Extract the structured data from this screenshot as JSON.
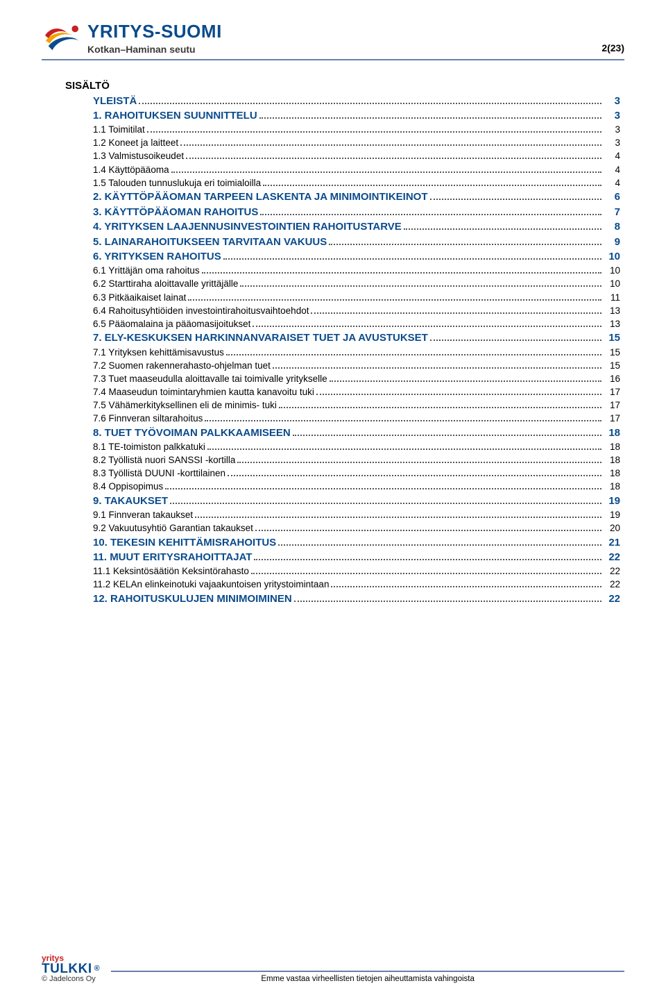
{
  "header": {
    "brand_title": "YRITYS-SUOMI",
    "brand_subtitle": "Kotkan–Haminan seutu",
    "page_indicator": "2(23)"
  },
  "sisalto_label": "SISÄLTÖ",
  "toc": [
    {
      "title": "YLEISTÄ",
      "page": "3",
      "bold": true
    },
    {
      "title": "1. RAHOITUKSEN SUUNNITTELU",
      "page": "3",
      "bold": true
    },
    {
      "title": "1.1 Toimitilat",
      "page": "3",
      "bold": false
    },
    {
      "title": "1.2 Koneet ja laitteet",
      "page": "3",
      "bold": false
    },
    {
      "title": "1.3 Valmistusoikeudet",
      "page": "4",
      "bold": false
    },
    {
      "title": "1.4 Käyttöpääoma",
      "page": "4",
      "bold": false
    },
    {
      "title": "1.5 Talouden tunnuslukuja eri toimialoilla",
      "page": "4",
      "bold": false
    },
    {
      "title": "2. KÄYTTÖPÄÄOMAN TARPEEN LASKENTA JA MINIMOINTIKEINOT",
      "page": "6",
      "bold": true
    },
    {
      "title": "3. KÄYTTÖPÄÄOMAN RAHOITUS",
      "page": "7",
      "bold": true
    },
    {
      "title": "4. YRITYKSEN LAAJENNUSINVESTOINTIEN RAHOITUSTARVE",
      "page": "8",
      "bold": true
    },
    {
      "title": "5. LAINARAHOITUKSEEN TARVITAAN VAKUUS",
      "page": "9",
      "bold": true
    },
    {
      "title": "6. YRITYKSEN RAHOITUS",
      "page": "10",
      "bold": true
    },
    {
      "title": "6.1 Yrittäjän oma rahoitus",
      "page": "10",
      "bold": false
    },
    {
      "title": "6.2 Starttiraha aloittavalle yrittäjälle",
      "page": "10",
      "bold": false
    },
    {
      "title": "6.3 Pitkäaikaiset lainat",
      "page": "11",
      "bold": false
    },
    {
      "title": "6.4 Rahoitusyhtiöiden investointirahoitusvaihtoehdot",
      "page": "13",
      "bold": false
    },
    {
      "title": "6.5 Pääomalaina ja pääomasijoitukset",
      "page": "13",
      "bold": false
    },
    {
      "title": "7. ELY-KESKUKSEN HARKINNANVARAISET TUET JA AVUSTUKSET",
      "page": "15",
      "bold": true
    },
    {
      "title": "7.1 Yrityksen kehittämisavustus",
      "page": "15",
      "bold": false
    },
    {
      "title": "7.2 Suomen rakennerahasto-ohjelman tuet",
      "page": "15",
      "bold": false
    },
    {
      "title": "7.3 Tuet maaseudulla aloittavalle tai toimivalle yritykselle",
      "page": "16",
      "bold": false
    },
    {
      "title": "7.4 Maaseudun toimintaryhmien kautta kanavoitu tuki",
      "page": "17",
      "bold": false
    },
    {
      "title": "7.5 Vähämerkityksellinen eli de minimis- tuki",
      "page": "17",
      "bold": false
    },
    {
      "title": "7.6 Finnveran siltarahoitus",
      "page": "17",
      "bold": false
    },
    {
      "title": "8. TUET TYÖVOIMAN PALKKAAMISEEN",
      "page": "18",
      "bold": true
    },
    {
      "title": "8.1 TE-toimiston palkkatuki",
      "page": "18",
      "bold": false
    },
    {
      "title": "8.2 Työllistä nuori SANSSI -kortilla",
      "page": "18",
      "bold": false
    },
    {
      "title": "8.3 Työllistä DUUNI -korttilainen",
      "page": "18",
      "bold": false
    },
    {
      "title": "8.4 Oppisopimus",
      "page": "18",
      "bold": false
    },
    {
      "title": "9. TAKAUKSET",
      "page": "19",
      "bold": true
    },
    {
      "title": "9.1 Finnveran takaukset",
      "page": "19",
      "bold": false
    },
    {
      "title": "9.2 Vakuutusyhtiö Garantian takaukset",
      "page": "20",
      "bold": false
    },
    {
      "title": "10. TEKESIN KEHITTÄMISRAHOITUS",
      "page": "21",
      "bold": true
    },
    {
      "title": "11. MUUT ERITYSRAHOITTAJAT",
      "page": "22",
      "bold": true
    },
    {
      "title": "11.1 Keksintösäätiön Keksintörahasto",
      "page": "22",
      "bold": false
    },
    {
      "title": "11.2 KELAn elinkeinotuki vajaakuntoisen yritystoimintaan",
      "page": "22",
      "bold": false
    },
    {
      "title": "12. RAHOITUSKULUJEN MINIMOIMINEN",
      "page": "22",
      "bold": true
    }
  ],
  "footer": {
    "small_label": "yritys",
    "tulkki": "TULKKI",
    "reg": "®",
    "copyright": "© Jadelcons Oy",
    "disclaimer": "Emme vastaa virheellisten tietojen aiheuttamista vahingoista"
  },
  "colors": {
    "brand_blue": "#0a4b8c",
    "rule": "#6b7fa8",
    "red": "#c92020",
    "orange": "#f4a300"
  }
}
